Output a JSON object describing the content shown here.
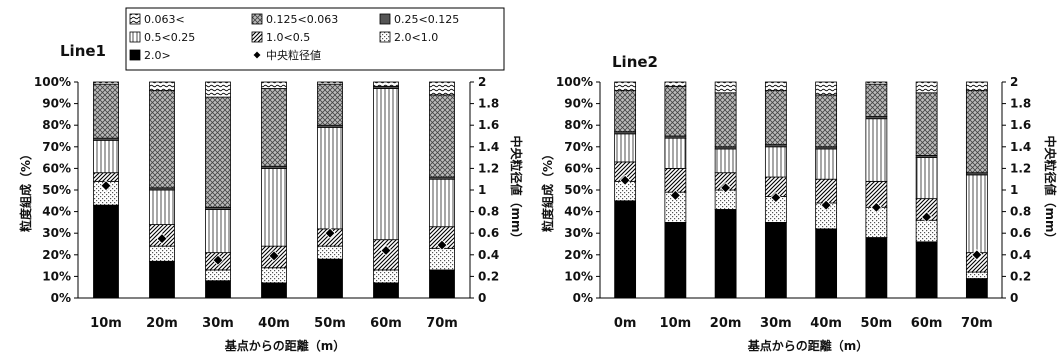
{
  "legend": {
    "items": [
      {
        "label": "0.063<",
        "pattern": "p7"
      },
      {
        "label": "0.125<0.063",
        "pattern": "p6"
      },
      {
        "label": "0.25<0.125",
        "pattern": "p5"
      },
      {
        "label": "0.5<0.25",
        "pattern": "p4"
      },
      {
        "label": "1.0<0.5",
        "pattern": "p3"
      },
      {
        "label": "2.0<1.0",
        "pattern": "p2"
      },
      {
        "label": "2.0>",
        "pattern": "p1"
      },
      {
        "label": "中央粒径値",
        "pattern": "marker"
      }
    ]
  },
  "chart_data": [
    {
      "type": "bar",
      "stacked": true,
      "title": "Line1",
      "xlabel": "基点からの距離（m）",
      "ylabel": "粒度組成（%）",
      "y2label": "中央粒径値（mm）",
      "ylim": [
        0,
        100
      ],
      "y2lim": [
        0,
        2
      ],
      "yticks": [
        "0%",
        "10%",
        "20%",
        "30%",
        "40%",
        "50%",
        "60%",
        "70%",
        "80%",
        "90%",
        "100%"
      ],
      "y2ticks": [
        "0",
        "0.2",
        "0.4",
        "0.6",
        "0.8",
        "1",
        "1.2",
        "1.4",
        "1.6",
        "1.8",
        "2"
      ],
      "categories": [
        "10m",
        "20m",
        "30m",
        "40m",
        "50m",
        "60m",
        "70m"
      ],
      "series": [
        {
          "name": "2.0>",
          "values": [
            43,
            17,
            8,
            7,
            18,
            7,
            13
          ]
        },
        {
          "name": "2.0<1.0",
          "values": [
            11,
            7,
            5,
            7,
            6,
            6,
            10
          ]
        },
        {
          "name": "1.0<0.5",
          "values": [
            4,
            10,
            8,
            10,
            8,
            14,
            10
          ]
        },
        {
          "name": "0.5<0.25",
          "values": [
            15,
            16,
            20,
            36,
            47,
            70,
            22
          ]
        },
        {
          "name": "0.25<0.125",
          "values": [
            1,
            1,
            1,
            1,
            1,
            1,
            1
          ]
        },
        {
          "name": "0.125<0.063",
          "values": [
            25,
            45,
            51,
            36,
            19,
            0,
            38
          ]
        },
        {
          "name": "0.063<",
          "values": [
            1,
            4,
            7,
            3,
            1,
            2,
            6
          ]
        }
      ],
      "median": {
        "name": "中央粒径値",
        "values": [
          1.04,
          0.55,
          0.35,
          0.39,
          0.6,
          0.44,
          0.49
        ]
      }
    },
    {
      "type": "bar",
      "stacked": true,
      "title": "Line2",
      "xlabel": "基点からの距離（m）",
      "ylabel": "粒度組成（%）",
      "y2label": "中央粒径値（mm）",
      "ylim": [
        0,
        100
      ],
      "y2lim": [
        0,
        2
      ],
      "yticks": [
        "0%",
        "10%",
        "20%",
        "30%",
        "40%",
        "50%",
        "60%",
        "70%",
        "80%",
        "90%",
        "100%"
      ],
      "y2ticks": [
        "0",
        "0.2",
        "0.4",
        "0.6",
        "0.8",
        "1",
        "1.2",
        "1.4",
        "1.6",
        "1.8",
        "2"
      ],
      "categories": [
        "0m",
        "10m",
        "20m",
        "30m",
        "40m",
        "50m",
        "60m",
        "70m"
      ],
      "series": [
        {
          "name": "2.0>",
          "values": [
            45,
            35,
            41,
            35,
            32,
            28,
            26,
            9
          ]
        },
        {
          "name": "2.0<1.0",
          "values": [
            9,
            14,
            9,
            12,
            12,
            14,
            10,
            3
          ]
        },
        {
          "name": "1.0<0.5",
          "values": [
            9,
            11,
            8,
            9,
            11,
            12,
            10,
            9
          ]
        },
        {
          "name": "0.5<0.25",
          "values": [
            13,
            14,
            11,
            14,
            14,
            29,
            19,
            36
          ]
        },
        {
          "name": "0.25<0.125",
          "values": [
            1,
            1,
            1,
            1,
            1,
            1,
            1,
            1
          ]
        },
        {
          "name": "0.125<0.063",
          "values": [
            19,
            23,
            25,
            25,
            24,
            15,
            29,
            38
          ]
        },
        {
          "name": "0.063<",
          "values": [
            4,
            2,
            5,
            4,
            6,
            1,
            5,
            4
          ]
        }
      ],
      "median": {
        "name": "中央粒径値",
        "values": [
          1.09,
          0.95,
          1.02,
          0.93,
          0.86,
          0.84,
          0.75,
          0.4
        ]
      }
    }
  ]
}
